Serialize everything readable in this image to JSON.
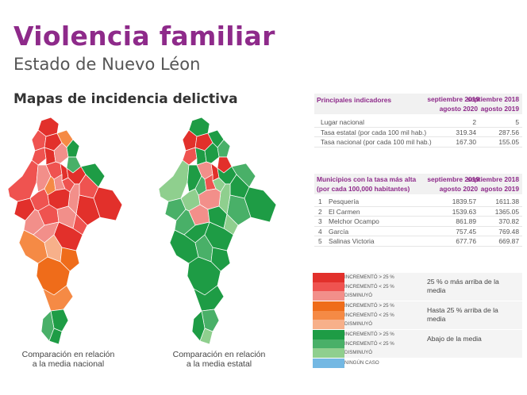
{
  "header": {
    "title": "Violencia familiar",
    "subtitle": "Estado de Nuevo Léon",
    "section_title": "Mapas de incidencia delictiva"
  },
  "maps": [
    {
      "caption_line1": "Comparación en relación",
      "caption_line2": "a la media nacional"
    },
    {
      "caption_line1": "Comparación en relación",
      "caption_line2": "a la media estatal"
    }
  ],
  "indicators": {
    "title": "Principales indicadores",
    "col1": [
      "septiembre 2019",
      "agosto 2020"
    ],
    "col2": [
      "septiembre 2018",
      "agosto 2019"
    ],
    "rows": [
      {
        "label": "Lugar nacional",
        "v1": "2",
        "v2": "5"
      },
      {
        "label": "Tasa estatal (por cada 100 mil hab.)",
        "v1": "319.34",
        "v2": "287.56"
      },
      {
        "label": "Tasa nacional (por cada 100 mil hab.)",
        "v1": "167.30",
        "v2": "155.05"
      }
    ]
  },
  "municipios": {
    "title": "Municipios con la tasa más alta",
    "title2": "(por cada 100,000 habitantes)",
    "col1": [
      "septiembre 2019",
      "agosto 2020"
    ],
    "col2": [
      "septiembre 2018",
      "agosto 2019"
    ],
    "rows": [
      {
        "n": "1",
        "label": "Pesquería",
        "v1": "1839.57",
        "v2": "1611.38"
      },
      {
        "n": "2",
        "label": "El Carmen",
        "v1": "1539.63",
        "v2": "1365.05"
      },
      {
        "n": "3",
        "label": "Melchor Ocampo",
        "v1": "861.89",
        "v2": "370.82"
      },
      {
        "n": "4",
        "label": "García",
        "v1": "757.45",
        "v2": "769.48"
      },
      {
        "n": "5",
        "label": "Salinas Victoria",
        "v1": "677.76",
        "v2": "669.87"
      }
    ]
  },
  "legend": {
    "groups": [
      {
        "desc": "25 % o más arriba de la media",
        "items": [
          "INCREMENTÓ > 25 %",
          "INCREMENTÓ < 25 %",
          "DISMINUYÓ"
        ],
        "colors": [
          "#e2302b",
          "#ef5350",
          "#f28f8a"
        ]
      },
      {
        "desc": "Hasta 25 % arriba de la media",
        "items": [
          "INCREMENTÓ > 25 %",
          "INCREMENTÓ < 25 %",
          "DISMINUYÓ"
        ],
        "colors": [
          "#ef6c1a",
          "#f58a45",
          "#f7b08a"
        ]
      },
      {
        "desc": "Abajo de la media",
        "items": [
          "INCREMENTÓ > 25 %",
          "INCREMENTÓ < 25 %",
          "DISMINUYÓ"
        ],
        "colors": [
          "#1e9c45",
          "#49b068",
          "#8fcf8e"
        ]
      },
      {
        "desc": "",
        "items": [
          "NINGÚN CASO"
        ],
        "colors": [
          "#74b8e3"
        ]
      }
    ]
  }
}
